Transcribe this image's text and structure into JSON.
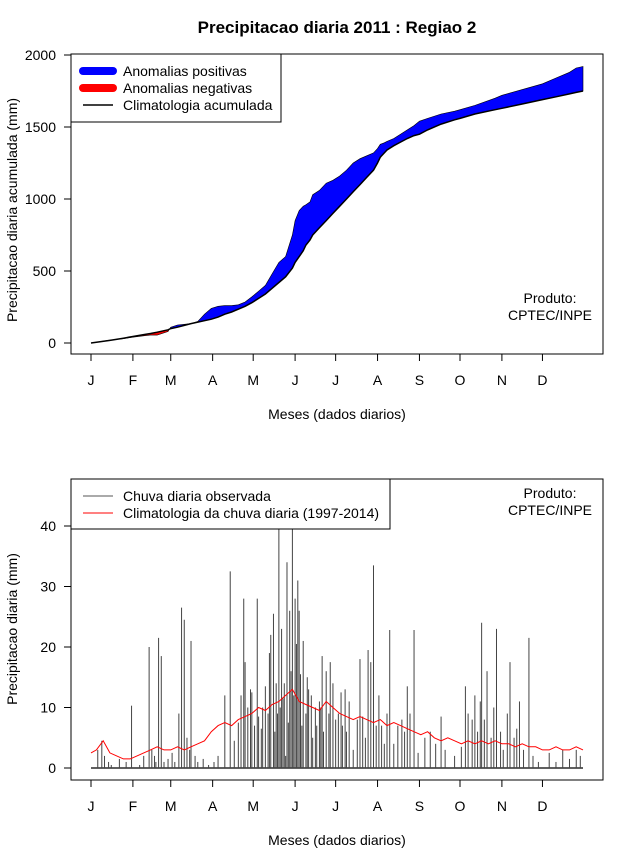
{
  "figure_title": "Precipitacao diaria 2011 : Regiao 2",
  "chart_data": [
    {
      "type": "area",
      "name": "accumulated",
      "xlabel": "Meses (dados diarios)",
      "ylabel": "Precipitacao diaria acumulada (mm)",
      "xlim": [
        1,
        365
      ],
      "ylim": [
        0,
        2000
      ],
      "month_ticks": {
        "labels": [
          "J",
          "F",
          "M",
          "A",
          "M",
          "J",
          "J",
          "A",
          "S",
          "O",
          "N",
          "D"
        ],
        "days": [
          1,
          32,
          60,
          91,
          121,
          152,
          182,
          213,
          244,
          274,
          305,
          335
        ]
      },
      "y_ticks": [
        0,
        500,
        1000,
        1500,
        2000
      ],
      "legend": [
        {
          "label": "Anomalias positivas",
          "color": "#0000ff"
        },
        {
          "label": "Anomalias negativas",
          "color": "#ff0000"
        },
        {
          "label": "Climatologia acumulada",
          "color": "#000000"
        }
      ],
      "annotation": [
        "Produto:",
        "CPTEC/INPE"
      ],
      "colors": {
        "positive": "#0000ff",
        "negative": "#ff0000",
        "climatology": "#000000"
      },
      "days": [
        1,
        15,
        25,
        32,
        40,
        45,
        50,
        58,
        60,
        65,
        70,
        75,
        80,
        85,
        90,
        95,
        100,
        105,
        110,
        115,
        120,
        125,
        130,
        135,
        140,
        145,
        150,
        152,
        155,
        158,
        160,
        163,
        165,
        170,
        175,
        180,
        185,
        190,
        195,
        200,
        205,
        210,
        213,
        215,
        218,
        220,
        225,
        230,
        235,
        240,
        244,
        250,
        260,
        270,
        274,
        285,
        300,
        305,
        320,
        335,
        345,
        355,
        360,
        365
      ],
      "observed": [
        0,
        20,
        30,
        40,
        50,
        55,
        55,
        80,
        110,
        125,
        130,
        135,
        150,
        200,
        240,
        255,
        260,
        260,
        265,
        285,
        320,
        360,
        400,
        480,
        560,
        600,
        750,
        850,
        920,
        950,
        960,
        980,
        1030,
        1060,
        1110,
        1130,
        1160,
        1200,
        1250,
        1280,
        1300,
        1320,
        1350,
        1380,
        1390,
        1400,
        1420,
        1450,
        1480,
        1510,
        1540,
        1560,
        1590,
        1610,
        1620,
        1650,
        1700,
        1720,
        1760,
        1800,
        1840,
        1880,
        1910,
        1920
      ],
      "climatology": [
        0,
        18,
        33,
        45,
        58,
        66,
        75,
        92,
        100,
        110,
        122,
        135,
        145,
        155,
        165,
        180,
        200,
        215,
        235,
        255,
        280,
        310,
        340,
        380,
        420,
        460,
        520,
        560,
        600,
        640,
        680,
        715,
        750,
        800,
        850,
        900,
        950,
        1000,
        1050,
        1100,
        1150,
        1200,
        1250,
        1290,
        1320,
        1340,
        1370,
        1395,
        1420,
        1440,
        1450,
        1480,
        1520,
        1550,
        1560,
        1590,
        1620,
        1630,
        1660,
        1690,
        1710,
        1730,
        1740,
        1750
      ]
    },
    {
      "type": "bar",
      "name": "daily",
      "xlabel": "Meses (dados diarios)",
      "ylabel": "Precipitacao diaria (mm)",
      "xlim": [
        1,
        365
      ],
      "ylim": [
        0,
        40
      ],
      "month_ticks": {
        "labels": [
          "J",
          "F",
          "M",
          "A",
          "M",
          "J",
          "J",
          "A",
          "S",
          "O",
          "N",
          "D"
        ],
        "days": [
          1,
          32,
          60,
          91,
          121,
          152,
          182,
          213,
          244,
          274,
          305,
          335
        ]
      },
      "y_ticks": [
        0,
        10,
        20,
        30,
        40
      ],
      "legend": [
        {
          "label": "Chuva diaria observada",
          "color": "#555555"
        },
        {
          "label": "Climatologia da chuva diaria (1997-2014)",
          "color": "#ff0000"
        }
      ],
      "annotation": [
        "Produto:",
        "CPTEC/INPE"
      ],
      "colors": {
        "bars": "#444444",
        "climatology": "#ff0000"
      },
      "bars": [
        [
          6,
          3
        ],
        [
          9,
          4.5
        ],
        [
          11,
          2
        ],
        [
          14,
          1
        ],
        [
          16,
          0.5
        ],
        [
          22,
          1.5
        ],
        [
          27,
          1
        ],
        [
          31,
          10.3
        ],
        [
          37,
          0.5
        ],
        [
          40,
          2
        ],
        [
          44,
          20
        ],
        [
          46,
          3
        ],
        [
          48,
          2
        ],
        [
          49,
          1
        ],
        [
          51,
          21.5
        ],
        [
          53,
          18.5
        ],
        [
          55,
          1
        ],
        [
          58,
          1.5
        ],
        [
          61,
          2.5
        ],
        [
          63,
          1
        ],
        [
          66,
          9
        ],
        [
          68,
          26.5
        ],
        [
          70,
          24.5
        ],
        [
          72,
          5
        ],
        [
          74,
          3
        ],
        [
          75,
          21
        ],
        [
          78,
          2
        ],
        [
          80,
          1
        ],
        [
          84,
          1.5
        ],
        [
          88,
          0.5
        ],
        [
          92,
          1
        ],
        [
          95,
          2
        ],
        [
          100,
          12
        ],
        [
          104,
          32.5
        ],
        [
          107,
          4.5
        ],
        [
          110,
          7.5
        ],
        [
          112,
          12
        ],
        [
          114,
          28
        ],
        [
          115,
          17.5
        ],
        [
          117,
          10
        ],
        [
          119,
          13
        ],
        [
          120,
          12.5
        ],
        [
          122,
          7
        ],
        [
          124,
          28
        ],
        [
          125,
          8.5
        ],
        [
          127,
          6.5
        ],
        [
          128,
          10
        ],
        [
          130,
          13.5
        ],
        [
          132,
          9
        ],
        [
          133,
          19
        ],
        [
          134,
          22
        ],
        [
          136,
          25.5
        ],
        [
          137,
          6
        ],
        [
          138,
          14
        ],
        [
          139,
          9
        ],
        [
          140,
          39.5
        ],
        [
          141,
          10
        ],
        [
          142,
          23
        ],
        [
          143,
          11.5
        ],
        [
          144,
          14
        ],
        [
          145,
          2
        ],
        [
          146,
          34
        ],
        [
          147,
          7.5
        ],
        [
          148,
          26
        ],
        [
          149,
          16
        ],
        [
          150,
          40
        ],
        [
          151,
          12
        ],
        [
          152,
          28
        ],
        [
          153,
          20.5
        ],
        [
          154,
          31
        ],
        [
          155,
          26
        ],
        [
          156,
          15.5
        ],
        [
          157,
          7
        ],
        [
          158,
          21
        ],
        [
          160,
          9
        ],
        [
          161,
          15
        ],
        [
          162,
          13
        ],
        [
          164,
          12
        ],
        [
          165,
          5
        ],
        [
          167,
          10
        ],
        [
          168,
          7
        ],
        [
          170,
          11
        ],
        [
          171,
          10
        ],
        [
          172,
          18.5
        ],
        [
          173,
          6
        ],
        [
          175,
          16
        ],
        [
          177,
          9
        ],
        [
          178,
          17.5
        ],
        [
          180,
          14
        ],
        [
          182,
          8
        ],
        [
          184,
          9
        ],
        [
          186,
          12.5
        ],
        [
          187,
          7
        ],
        [
          189,
          13
        ],
        [
          190,
          6
        ],
        [
          192,
          11
        ],
        [
          195,
          3
        ],
        [
          198,
          8
        ],
        [
          200,
          18
        ],
        [
          202,
          8.5
        ],
        [
          204,
          5
        ],
        [
          206,
          19.5
        ],
        [
          208,
          17.5
        ],
        [
          210,
          33.5
        ],
        [
          212,
          7
        ],
        [
          214,
          12
        ],
        [
          216,
          7
        ],
        [
          218,
          4
        ],
        [
          220,
          9
        ],
        [
          222,
          22.8
        ],
        [
          225,
          4
        ],
        [
          228,
          7
        ],
        [
          231,
          8
        ],
        [
          233,
          6
        ],
        [
          235,
          13.5
        ],
        [
          237,
          9
        ],
        [
          240,
          22.8
        ],
        [
          243,
          2.5
        ],
        [
          248,
          5
        ],
        [
          252,
          6
        ],
        [
          256,
          4
        ],
        [
          260,
          8.5
        ],
        [
          263,
          3
        ],
        [
          270,
          2
        ],
        [
          275,
          3.5
        ],
        [
          278,
          13.5
        ],
        [
          280,
          9
        ],
        [
          283,
          8
        ],
        [
          285,
          12
        ],
        [
          287,
          6
        ],
        [
          289,
          11
        ],
        [
          290,
          24
        ],
        [
          292,
          8
        ],
        [
          294,
          16
        ],
        [
          297,
          5
        ],
        [
          299,
          10
        ],
        [
          301,
          23
        ],
        [
          304,
          6
        ],
        [
          306,
          3
        ],
        [
          309,
          9
        ],
        [
          311,
          17.5
        ],
        [
          314,
          5
        ],
        [
          316,
          6.5
        ],
        [
          318,
          11
        ],
        [
          321,
          3
        ],
        [
          325,
          21.5
        ],
        [
          328,
          2
        ],
        [
          332,
          1
        ],
        [
          340,
          2.5
        ],
        [
          345,
          1
        ],
        [
          350,
          3
        ],
        [
          355,
          1.5
        ],
        [
          360,
          3
        ],
        [
          363,
          2
        ]
      ],
      "climatology_line": [
        [
          1,
          2.5
        ],
        [
          5,
          3
        ],
        [
          10,
          4.5
        ],
        [
          15,
          2.5
        ],
        [
          20,
          2
        ],
        [
          25,
          1.5
        ],
        [
          30,
          1.5
        ],
        [
          35,
          2
        ],
        [
          40,
          2.5
        ],
        [
          45,
          3
        ],
        [
          50,
          3.5
        ],
        [
          55,
          3
        ],
        [
          60,
          3
        ],
        [
          65,
          3.5
        ],
        [
          70,
          3
        ],
        [
          75,
          3.5
        ],
        [
          80,
          4
        ],
        [
          85,
          4.5
        ],
        [
          90,
          6
        ],
        [
          95,
          7
        ],
        [
          100,
          7.5
        ],
        [
          105,
          7
        ],
        [
          110,
          8
        ],
        [
          115,
          8.5
        ],
        [
          120,
          9
        ],
        [
          125,
          10
        ],
        [
          130,
          9.5
        ],
        [
          135,
          10.5
        ],
        [
          140,
          11
        ],
        [
          145,
          12
        ],
        [
          150,
          13
        ],
        [
          155,
          11
        ],
        [
          160,
          10.5
        ],
        [
          165,
          10
        ],
        [
          170,
          9.5
        ],
        [
          175,
          11
        ],
        [
          180,
          10
        ],
        [
          185,
          9
        ],
        [
          190,
          8.5
        ],
        [
          195,
          8
        ],
        [
          200,
          8.5
        ],
        [
          205,
          8
        ],
        [
          210,
          7.5
        ],
        [
          215,
          8
        ],
        [
          220,
          7
        ],
        [
          225,
          7.5
        ],
        [
          230,
          7
        ],
        [
          235,
          6.5
        ],
        [
          240,
          6
        ],
        [
          245,
          5.5
        ],
        [
          250,
          6
        ],
        [
          255,
          5
        ],
        [
          260,
          4.5
        ],
        [
          265,
          5
        ],
        [
          270,
          4.5
        ],
        [
          275,
          4
        ],
        [
          280,
          4.5
        ],
        [
          285,
          4
        ],
        [
          290,
          4.5
        ],
        [
          295,
          4
        ],
        [
          300,
          4.5
        ],
        [
          305,
          4
        ],
        [
          310,
          4
        ],
        [
          315,
          3.5
        ],
        [
          320,
          4
        ],
        [
          325,
          3.5
        ],
        [
          330,
          3.5
        ],
        [
          335,
          3
        ],
        [
          340,
          3
        ],
        [
          345,
          3.5
        ],
        [
          350,
          3
        ],
        [
          355,
          3
        ],
        [
          360,
          3.5
        ],
        [
          365,
          3
        ]
      ]
    }
  ]
}
